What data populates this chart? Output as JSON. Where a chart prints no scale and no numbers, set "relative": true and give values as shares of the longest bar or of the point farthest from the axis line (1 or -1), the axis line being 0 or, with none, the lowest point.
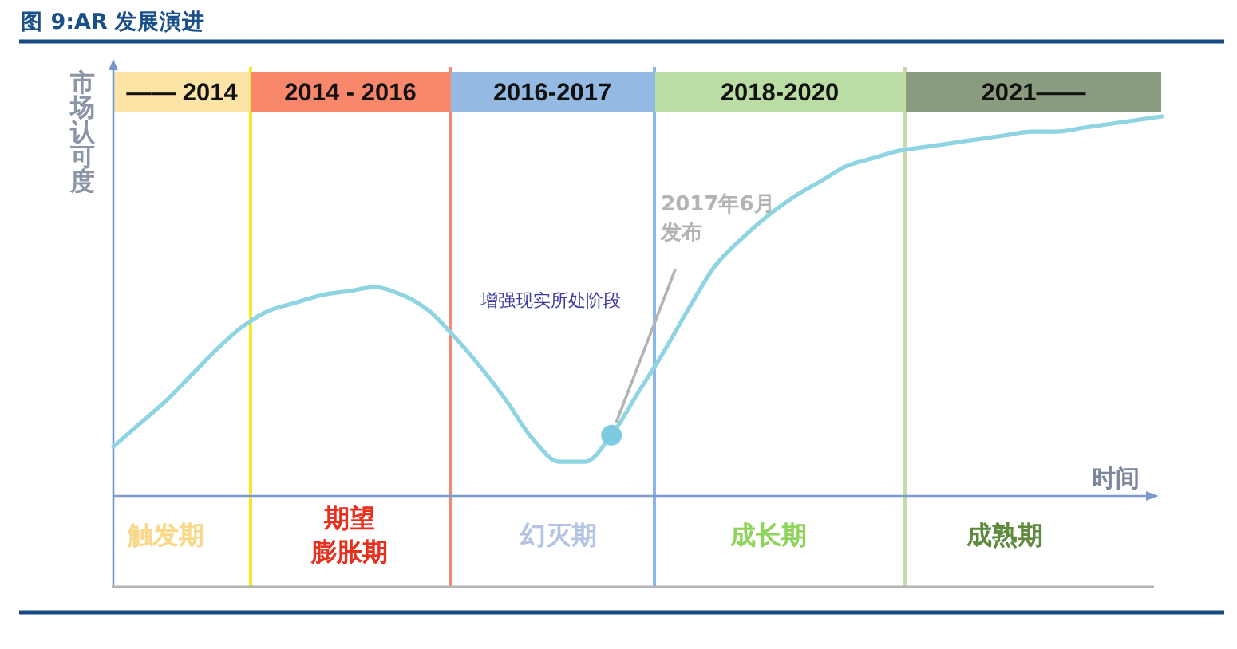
{
  "chart_data": {
    "type": "line",
    "title": "图 9:AR 发展演进",
    "xlabel": "时间",
    "ylabel": "市场认可度",
    "relative": true,
    "categories": [
      null,
      null,
      "触发期",
      null,
      null,
      null,
      null,
      null,
      null,
      "期望膨胀期",
      null,
      null,
      null,
      null,
      null,
      null,
      null,
      "幻灭期",
      null,
      null,
      null,
      null,
      null,
      null,
      null,
      "成长期",
      null,
      null,
      null,
      null,
      null,
      null,
      null,
      null,
      "成熟期",
      null,
      null,
      null,
      null,
      null,
      null
    ],
    "annotations": [
      "—— 2014",
      "2014 - 2016",
      "2016-2017",
      "2018-2020",
      "2021——",
      "增强现实所处阶段"
    ],
    "series": [
      {
        "color": "#8fd4e2",
        "values": [
          0.13,
          0.19,
          0.25,
          0.32,
          0.39,
          0.45,
          0.49,
          0.51,
          0.53,
          0.54,
          0.55,
          0.53,
          0.49,
          0.42,
          0.34,
          0.25,
          0.15,
          0.09,
          0.09,
          0.16,
          0.27,
          0.38,
          0.5,
          0.61,
          0.68,
          0.74,
          0.79,
          0.83,
          0.87,
          0.89,
          0.91,
          0.92,
          0.93,
          0.94,
          0.95,
          0.96,
          0.96,
          0.97,
          0.98,
          0.99,
          1
        ]
      },
      {
        "type": "scatter",
        "name": "2017年6月发布",
        "color": "#7ccbe0",
        "marker": "circle",
        "values": [
          null,
          null,
          null,
          null,
          null,
          null,
          null,
          null,
          null,
          null,
          null,
          null,
          null,
          null,
          null,
          null,
          null,
          null,
          null,
          0.16,
          null,
          null,
          null,
          null,
          null,
          null,
          null,
          null,
          null,
          null,
          null,
          null,
          null,
          null,
          null,
          null,
          null,
          null,
          null,
          null,
          null
        ]
      }
    ]
  }
}
